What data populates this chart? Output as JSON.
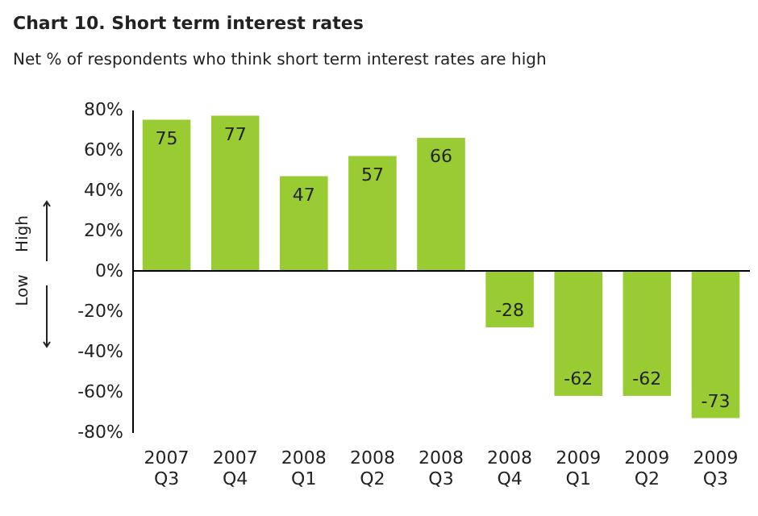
{
  "chart_data": {
    "type": "bar",
    "title": "Chart 10. Short term interest rates",
    "subtitle": "Net % of respondents who think short term interest rates are high",
    "categories": [
      "2007 Q3",
      "2007 Q4",
      "2008 Q1",
      "2008 Q2",
      "2008 Q3",
      "2008 Q4",
      "2009 Q1",
      "2009 Q2",
      "2009 Q3"
    ],
    "values": [
      75,
      77,
      47,
      57,
      66,
      -28,
      -62,
      -62,
      -73
    ],
    "color": "#99cc33",
    "data_labels": true,
    "ylim": [
      -80,
      80
    ],
    "yticks": [
      {
        "value": -80,
        "label": "-80%"
      },
      {
        "value": -60,
        "label": "-60%"
      },
      {
        "value": -40,
        "label": "-40%"
      },
      {
        "value": -20,
        "label": "-20%"
      },
      {
        "value": 0,
        "label": "0%"
      },
      {
        "value": 20,
        "label": "20%"
      },
      {
        "value": 40,
        "label": "40%"
      },
      {
        "value": 60,
        "label": "60%"
      },
      {
        "value": 80,
        "label": "80%"
      }
    ],
    "annotations": [
      "High",
      "Low"
    ]
  }
}
